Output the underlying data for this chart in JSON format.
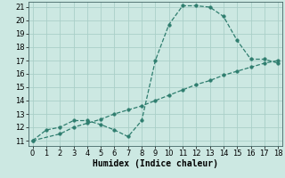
{
  "line1_x": [
    0,
    1,
    2,
    3,
    4,
    5,
    6,
    7,
    8,
    9,
    10,
    11,
    12,
    13,
    14,
    15,
    16,
    17,
    18
  ],
  "line1_y": [
    11.0,
    11.8,
    12.0,
    12.5,
    12.5,
    12.2,
    11.8,
    11.3,
    12.5,
    17.0,
    19.7,
    21.1,
    21.1,
    21.0,
    20.3,
    18.5,
    17.1,
    17.1,
    16.8
  ],
  "line2_x": [
    0,
    2,
    3,
    4,
    5,
    6,
    7,
    8,
    9,
    10,
    11,
    12,
    13,
    14,
    15,
    16,
    17,
    18
  ],
  "line2_y": [
    11.0,
    11.5,
    12.0,
    12.3,
    12.6,
    13.0,
    13.3,
    13.6,
    14.0,
    14.4,
    14.8,
    15.2,
    15.5,
    15.9,
    16.2,
    16.5,
    16.8,
    17.0
  ],
  "line_color": "#2e7d6e",
  "bg_color": "#cce8e2",
  "grid_color": "#aacfc8",
  "xlabel": "Humidex (Indice chaleur)",
  "ylabel_ticks": [
    11,
    12,
    13,
    14,
    15,
    16,
    17,
    18,
    19,
    20,
    21
  ],
  "xlabel_ticks": [
    0,
    1,
    2,
    3,
    4,
    5,
    6,
    7,
    8,
    9,
    10,
    11,
    12,
    13,
    14,
    15,
    16,
    17,
    18
  ],
  "xlim": [
    -0.3,
    18.3
  ],
  "ylim": [
    10.6,
    21.4
  ],
  "marker_size": 2.5,
  "linewidth": 0.9,
  "font_size": 6,
  "xlabel_fontsize": 7
}
